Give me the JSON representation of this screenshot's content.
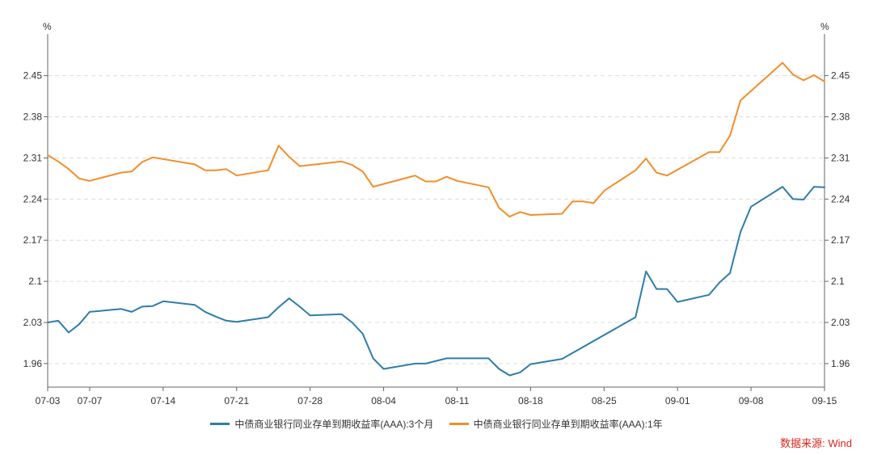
{
  "chart_data": {
    "type": "line",
    "y_unit_left": "%",
    "y_unit_right": "%",
    "ylim": [
      1.92,
      2.51
    ],
    "yticks": [
      1.96,
      2.03,
      2.1,
      2.17,
      2.24,
      2.31,
      2.38,
      2.45
    ],
    "ytick_labels": [
      "1.96",
      "2.03",
      "2.1",
      "2.17",
      "2.24",
      "2.31",
      "2.38",
      "2.45"
    ],
    "xlim": [
      "2023-07-03",
      "2023-09-15"
    ],
    "xticks": [
      "2023-07-03",
      "2023-07-07",
      "2023-07-14",
      "2023-07-21",
      "2023-07-28",
      "2023-08-04",
      "2023-08-11",
      "2023-08-18",
      "2023-08-25",
      "2023-09-01",
      "2023-09-08",
      "2023-09-15"
    ],
    "xtick_labels": [
      "07-03",
      "07-07",
      "07-14",
      "07-21",
      "07-28",
      "08-04",
      "08-11",
      "08-18",
      "08-25",
      "09-01",
      "09-08",
      "09-15"
    ],
    "grid": "horizontal-dashed",
    "legend_position": "bottom",
    "series": [
      {
        "name": "中债商业银行同业存单到期收益率(AAA):3个月",
        "color": "#2e7ea8",
        "points": [
          [
            "2023-07-03",
            2.03
          ],
          [
            "2023-07-04",
            2.033
          ],
          [
            "2023-07-05",
            2.013
          ],
          [
            "2023-07-06",
            2.027
          ],
          [
            "2023-07-07",
            2.048
          ],
          [
            "2023-07-10",
            2.053
          ],
          [
            "2023-07-11",
            2.048
          ],
          [
            "2023-07-12",
            2.057
          ],
          [
            "2023-07-13",
            2.058
          ],
          [
            "2023-07-14",
            2.066
          ],
          [
            "2023-07-17",
            2.06
          ],
          [
            "2023-07-18",
            2.048
          ],
          [
            "2023-07-19",
            2.04
          ],
          [
            "2023-07-20",
            2.033
          ],
          [
            "2023-07-21",
            2.031
          ],
          [
            "2023-07-24",
            2.039
          ],
          [
            "2023-07-25",
            2.056
          ],
          [
            "2023-07-26",
            2.071
          ],
          [
            "2023-07-27",
            2.057
          ],
          [
            "2023-07-28",
            2.042
          ],
          [
            "2023-07-31",
            2.044
          ],
          [
            "2023-08-01",
            2.03
          ],
          [
            "2023-08-02",
            2.011
          ],
          [
            "2023-08-03",
            1.969
          ],
          [
            "2023-08-04",
            1.951
          ],
          [
            "2023-08-07",
            1.96
          ],
          [
            "2023-08-08",
            1.96
          ],
          [
            "2023-08-10",
            1.969
          ],
          [
            "2023-08-11",
            1.969
          ],
          [
            "2023-08-14",
            1.969
          ],
          [
            "2023-08-15",
            1.951
          ],
          [
            "2023-08-16",
            1.94
          ],
          [
            "2023-08-17",
            1.945
          ],
          [
            "2023-08-18",
            1.959
          ],
          [
            "2023-08-21",
            1.968
          ],
          [
            "2023-08-28",
            2.039
          ],
          [
            "2023-08-29",
            2.117
          ],
          [
            "2023-08-30",
            2.087
          ],
          [
            "2023-08-31",
            2.087
          ],
          [
            "2023-09-01",
            2.065
          ],
          [
            "2023-09-04",
            2.077
          ],
          [
            "2023-09-05",
            2.098
          ],
          [
            "2023-09-06",
            2.114
          ],
          [
            "2023-09-07",
            2.184
          ],
          [
            "2023-09-08",
            2.227
          ],
          [
            "2023-09-11",
            2.261
          ],
          [
            "2023-09-12",
            2.24
          ],
          [
            "2023-09-13",
            2.239
          ],
          [
            "2023-09-14",
            2.261
          ],
          [
            "2023-09-15",
            2.26
          ]
        ]
      },
      {
        "name": "中债商业银行同业存单到期收益率(AAA):1年",
        "color": "#f28e2b",
        "points": [
          [
            "2023-07-03",
            2.315
          ],
          [
            "2023-07-04",
            2.304
          ],
          [
            "2023-07-05",
            2.291
          ],
          [
            "2023-07-06",
            2.275
          ],
          [
            "2023-07-07",
            2.271
          ],
          [
            "2023-07-10",
            2.285
          ],
          [
            "2023-07-11",
            2.287
          ],
          [
            "2023-07-12",
            2.303
          ],
          [
            "2023-07-13",
            2.311
          ],
          [
            "2023-07-17",
            2.299
          ],
          [
            "2023-07-18",
            2.289
          ],
          [
            "2023-07-19",
            2.289
          ],
          [
            "2023-07-20",
            2.291
          ],
          [
            "2023-07-21",
            2.28
          ],
          [
            "2023-07-24",
            2.289
          ],
          [
            "2023-07-25",
            2.331
          ],
          [
            "2023-07-26",
            2.312
          ],
          [
            "2023-07-27",
            2.296
          ],
          [
            "2023-07-31",
            2.304
          ],
          [
            "2023-08-01",
            2.298
          ],
          [
            "2023-08-02",
            2.287
          ],
          [
            "2023-08-03",
            2.261
          ],
          [
            "2023-08-07",
            2.28
          ],
          [
            "2023-08-08",
            2.27
          ],
          [
            "2023-08-09",
            2.27
          ],
          [
            "2023-08-10",
            2.278
          ],
          [
            "2023-08-11",
            2.271
          ],
          [
            "2023-08-14",
            2.26
          ],
          [
            "2023-08-15",
            2.225
          ],
          [
            "2023-08-16",
            2.21
          ],
          [
            "2023-08-17",
            2.218
          ],
          [
            "2023-08-18",
            2.213
          ],
          [
            "2023-08-21",
            2.215
          ],
          [
            "2023-08-22",
            2.236
          ],
          [
            "2023-08-23",
            2.236
          ],
          [
            "2023-08-24",
            2.233
          ],
          [
            "2023-08-25",
            2.254
          ],
          [
            "2023-08-28",
            2.289
          ],
          [
            "2023-08-29",
            2.309
          ],
          [
            "2023-08-30",
            2.285
          ],
          [
            "2023-08-31",
            2.28
          ],
          [
            "2023-09-04",
            2.32
          ],
          [
            "2023-09-05",
            2.32
          ],
          [
            "2023-09-06",
            2.348
          ],
          [
            "2023-09-07",
            2.408
          ],
          [
            "2023-09-11",
            2.472
          ],
          [
            "2023-09-12",
            2.452
          ],
          [
            "2023-09-13",
            2.442
          ],
          [
            "2023-09-14",
            2.451
          ],
          [
            "2023-09-15",
            2.44
          ]
        ]
      }
    ]
  },
  "source_label": "数据来源: Wind"
}
